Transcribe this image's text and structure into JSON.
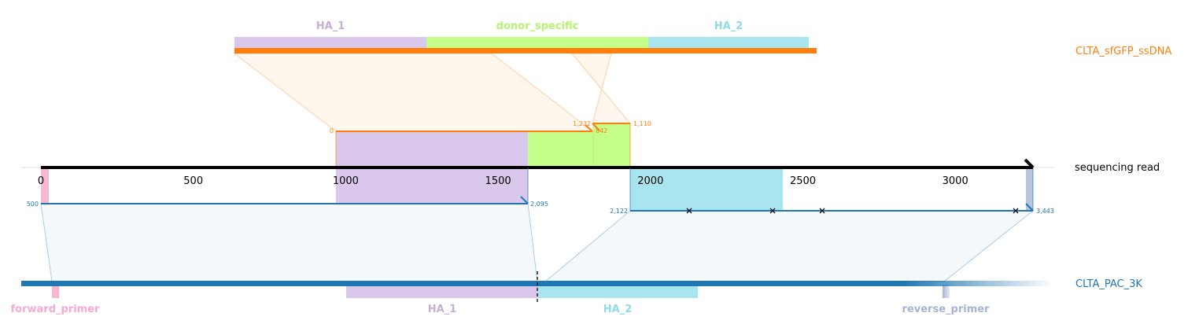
{
  "donor": {
    "name": "CLTA_sfGFP_ssDNA",
    "color": "#ff7f0e",
    "features": [
      {
        "label": "HA_1",
        "color": "#c5b0d5",
        "fill": "#d9c8ec"
      },
      {
        "label": "donor_specific",
        "color": "#b6f274",
        "fill": "#c4ff8a"
      },
      {
        "label": "HA_2",
        "color": "#8fdbe8",
        "fill": "#a8e5ee"
      }
    ],
    "alignments": [
      {
        "query_start_label": "0",
        "query_end_label": "1,232"
      },
      {
        "query_start_label": "842",
        "query_end_label": "1,110"
      }
    ]
  },
  "read": {
    "name": "sequencing read",
    "color": "#000000",
    "axis_ticks": [
      "0",
      "500",
      "1000",
      "1500",
      "2000",
      "2500",
      "3000"
    ]
  },
  "target": {
    "name": "CLTA_PAC_3K",
    "color": "#1f77b4",
    "features": [
      {
        "label": "forward_primer",
        "color": "#f7a8d6"
      },
      {
        "label": "HA_1",
        "color": "#c5b0d5"
      },
      {
        "label": "HA_2",
        "color": "#8fdbe8"
      },
      {
        "label": "reverse_primer",
        "color": "#a5b4d4"
      }
    ],
    "alignments": [
      {
        "query_start_label": "500",
        "query_end_label": "2,095"
      },
      {
        "query_start_label": "2,122",
        "query_end_label": "3,443"
      }
    ]
  }
}
